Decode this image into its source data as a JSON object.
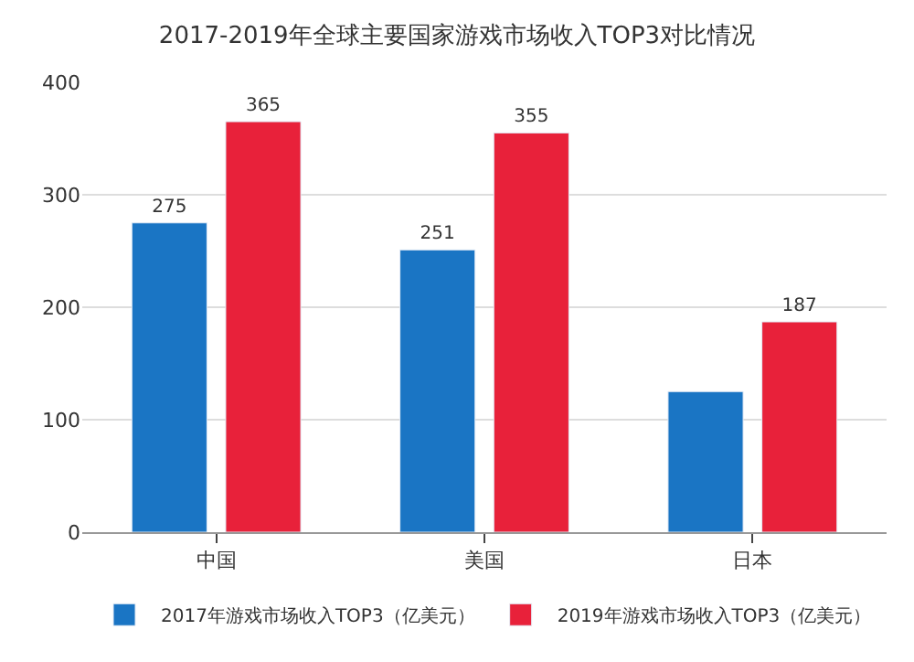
{
  "chart_data": {
    "type": "bar",
    "title": "2017-2019年全球主要国家游戏市场收入TOP3对比情况",
    "categories": [
      "中国",
      "美国",
      "日本"
    ],
    "series": [
      {
        "name": "2017年游戏市场收入TOP3（亿美元）",
        "color": "#1a75c4",
        "values": [
          275,
          251,
          125
        ],
        "value_labels": [
          "275",
          "251",
          null
        ]
      },
      {
        "name": "2019年游戏市场收入TOP3（亿美元）",
        "color": "#e8213a",
        "values": [
          365,
          355,
          187
        ],
        "value_labels": [
          "365",
          "355",
          "187"
        ]
      }
    ],
    "ylim": [
      0,
      400
    ],
    "yticks": [
      0,
      100,
      200,
      300,
      400
    ],
    "grid": "y",
    "legend": "bottom"
  }
}
